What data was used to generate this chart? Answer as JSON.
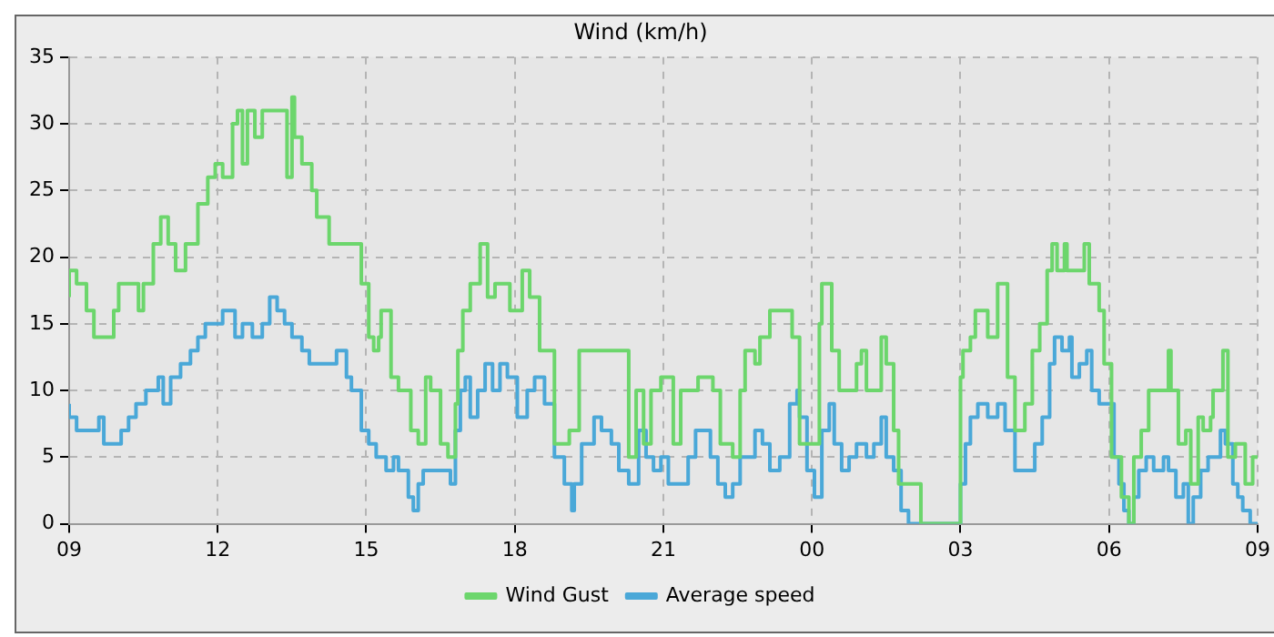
{
  "chart_data": {
    "type": "step",
    "title": "Wind (km/h)",
    "xlim": [
      9,
      33
    ],
    "xticks": [
      {
        "value": 9,
        "label": "09"
      },
      {
        "value": 12,
        "label": "12"
      },
      {
        "value": 15,
        "label": "15"
      },
      {
        "value": 18,
        "label": "18"
      },
      {
        "value": 21,
        "label": "21"
      },
      {
        "value": 24,
        "label": "00"
      },
      {
        "value": 27,
        "label": "03"
      },
      {
        "value": 30,
        "label": "06"
      },
      {
        "value": 33,
        "label": "09"
      }
    ],
    "ylim": [
      0,
      35
    ],
    "yticks": [
      0,
      5,
      10,
      15,
      20,
      25,
      30,
      35
    ],
    "grid": true,
    "legend": "bottom",
    "marker": "none",
    "line_style": "solid",
    "series": [
      {
        "name": "Wind Gust",
        "color": "#6cd66c",
        "x": [
          9.0,
          9.15,
          9.35,
          9.5,
          9.9,
          10.0,
          10.4,
          10.5,
          10.7,
          10.85,
          11.0,
          11.15,
          11.35,
          11.6,
          11.8,
          11.95,
          12.1,
          12.3,
          12.4,
          12.5,
          12.6,
          12.75,
          12.9,
          13.4,
          13.5,
          13.55,
          13.7,
          13.9,
          14.0,
          14.25,
          14.9,
          15.05,
          15.15,
          15.25,
          15.3,
          15.5,
          15.65,
          15.9,
          16.05,
          16.2,
          16.3,
          16.5,
          16.65,
          16.8,
          16.85,
          16.95,
          17.1,
          17.3,
          17.45,
          17.6,
          17.9,
          18.15,
          18.3,
          18.5,
          18.8,
          19.1,
          19.3,
          19.5,
          19.75,
          20.3,
          20.45,
          20.6,
          20.75,
          20.95,
          21.2,
          21.35,
          21.45,
          21.7,
          21.85,
          22.0,
          22.15,
          22.4,
          22.55,
          22.65,
          22.85,
          22.95,
          23.15,
          23.6,
          23.75,
          23.9,
          24.15,
          24.2,
          24.4,
          24.55,
          24.7,
          24.9,
          25.0,
          25.1,
          25.3,
          25.4,
          25.5,
          25.65,
          25.75,
          25.9,
          26.2,
          26.5,
          27.0,
          27.05,
          27.2,
          27.3,
          27.55,
          27.75,
          27.95,
          28.1,
          28.3,
          28.45,
          28.6,
          28.75,
          28.85,
          28.95,
          29.1,
          29.15,
          29.5,
          29.6,
          29.8,
          29.9,
          30.05,
          30.25,
          30.4,
          30.5,
          30.65,
          30.8,
          30.9,
          31.2,
          31.25,
          31.4,
          31.55,
          31.65,
          31.8,
          31.9,
          32.05,
          32.1,
          32.3,
          32.4,
          32.55,
          32.75,
          32.9,
          33.0
        ],
        "values": [
          17,
          19,
          18,
          16,
          14,
          16,
          18,
          16,
          18,
          21,
          23,
          21,
          19,
          21,
          24,
          26,
          27,
          26,
          30,
          31,
          27,
          31,
          29,
          31,
          26,
          32,
          29,
          27,
          25,
          23,
          21,
          18,
          14,
          13,
          14,
          16,
          11,
          10,
          7,
          6,
          11,
          10,
          6,
          5,
          9,
          13,
          16,
          18,
          21,
          17,
          18,
          16,
          19,
          17,
          13,
          6,
          7,
          13,
          13,
          13,
          5,
          10,
          6,
          10,
          11,
          6,
          10,
          10,
          11,
          11,
          10,
          6,
          5,
          10,
          13,
          12,
          14,
          16,
          14,
          6,
          6,
          15,
          18,
          13,
          10,
          10,
          12,
          13,
          10,
          10,
          14,
          12,
          7,
          3,
          3,
          0,
          0,
          11,
          13,
          14,
          16,
          14,
          18,
          11,
          7,
          9,
          13,
          15,
          19,
          21,
          19,
          21,
          19,
          21,
          18,
          16,
          12,
          5,
          2,
          0,
          5,
          7,
          10,
          10,
          13,
          10,
          6,
          7,
          3,
          8,
          7,
          8,
          10,
          13,
          5,
          6,
          3,
          5
        ]
      },
      {
        "name": "Average speed",
        "color": "#4aa8d8",
        "x": [
          9.0,
          9.15,
          9.6,
          9.7,
          9.9,
          10.05,
          10.2,
          10.35,
          10.55,
          10.8,
          10.9,
          11.05,
          11.25,
          11.45,
          11.6,
          11.75,
          11.95,
          12.1,
          12.35,
          12.5,
          12.7,
          12.9,
          13.05,
          13.2,
          13.35,
          13.5,
          13.7,
          13.85,
          14.0,
          14.4,
          14.6,
          14.7,
          14.9,
          15.05,
          15.2,
          15.4,
          15.55,
          15.65,
          15.85,
          15.95,
          16.05,
          16.15,
          16.3,
          16.7,
          16.8,
          16.9,
          17.0,
          17.1,
          17.25,
          17.4,
          17.55,
          17.7,
          17.85,
          18.05,
          18.25,
          18.4,
          18.6,
          18.8,
          19.0,
          19.15,
          19.2,
          19.35,
          19.6,
          19.75,
          19.95,
          20.1,
          20.3,
          20.5,
          20.65,
          20.8,
          20.95,
          21.1,
          21.25,
          21.5,
          21.65,
          21.8,
          21.95,
          22.1,
          22.25,
          22.4,
          22.55,
          22.7,
          22.85,
          23.0,
          23.15,
          23.35,
          23.55,
          23.7,
          23.75,
          23.9,
          24.05,
          24.2,
          24.35,
          24.45,
          24.6,
          24.75,
          24.9,
          25.1,
          25.25,
          25.4,
          25.5,
          25.65,
          25.8,
          25.95,
          26.0,
          27.0,
          27.1,
          27.2,
          27.35,
          27.55,
          27.75,
          27.9,
          28.1,
          28.2,
          28.5,
          28.65,
          28.8,
          28.9,
          29.05,
          29.2,
          29.25,
          29.4,
          29.55,
          29.65,
          29.8,
          29.9,
          30.1,
          30.2,
          30.3,
          30.4,
          30.5,
          30.6,
          30.75,
          30.9,
          31.1,
          31.2,
          31.35,
          31.5,
          31.6,
          31.7,
          31.85,
          32.0,
          32.25,
          32.35,
          32.5,
          32.6,
          32.7,
          32.85,
          33.0
        ],
        "values": [
          9,
          8,
          7,
          8,
          6,
          6,
          7,
          8,
          9,
          10,
          11,
          9,
          11,
          12,
          13,
          14,
          15,
          15,
          16,
          14,
          15,
          14,
          15,
          17,
          16,
          15,
          14,
          13,
          12,
          12,
          13,
          11,
          10,
          7,
          6,
          5,
          4,
          5,
          4,
          2,
          1,
          3,
          4,
          4,
          3,
          7,
          10,
          11,
          8,
          10,
          12,
          10,
          12,
          11,
          8,
          10,
          11,
          9,
          5,
          3,
          1,
          3,
          6,
          8,
          7,
          6,
          4,
          3,
          7,
          5,
          4,
          5,
          3,
          3,
          5,
          7,
          7,
          5,
          3,
          2,
          3,
          5,
          5,
          7,
          6,
          4,
          5,
          9,
          10,
          8,
          4,
          2,
          7,
          9,
          6,
          4,
          5,
          6,
          5,
          6,
          8,
          5,
          4,
          1,
          0,
          0,
          3,
          6,
          8,
          9,
          8,
          9,
          7,
          4,
          4,
          6,
          8,
          12,
          14,
          13,
          14,
          11,
          12,
          13,
          10,
          9,
          9,
          5,
          3,
          1,
          0,
          2,
          4,
          5,
          4,
          5,
          4,
          2,
          3,
          0,
          2,
          4,
          5,
          7,
          6,
          3,
          2,
          1,
          0
        ]
      }
    ]
  }
}
